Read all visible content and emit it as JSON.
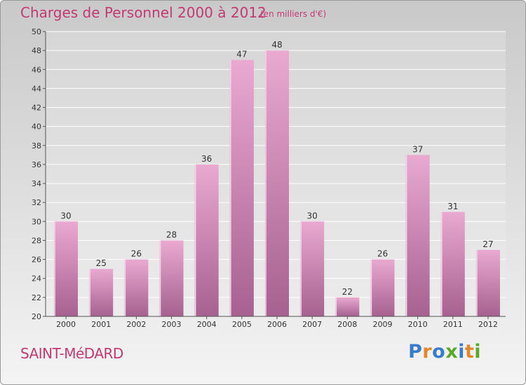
{
  "header": {
    "title": "Charges de Personnel 2000 à 2012",
    "subtitle": "(en milliers d'€)"
  },
  "footer": {
    "commune": "SAINT-MéDARD",
    "logo": "Proxiti"
  },
  "colors": {
    "title": "#c23a73",
    "bar_light": "#e8a8cf",
    "bar_dark": "#a76090",
    "logo_letters": [
      "#3a7ccc",
      "#e2872a",
      "#3a7ccc",
      "#5aaa2a",
      "#3a7ccc",
      "#e2872a",
      "#5aaa2a"
    ]
  },
  "chart_data": {
    "type": "bar",
    "categories": [
      "2000",
      "2001",
      "2002",
      "2003",
      "2004",
      "2005",
      "2006",
      "2007",
      "2008",
      "2009",
      "2010",
      "2011",
      "2012"
    ],
    "values": [
      30,
      25,
      26,
      28,
      36,
      47,
      48,
      30,
      22,
      26,
      37,
      31,
      27
    ],
    "ylim": [
      20,
      50
    ],
    "yticks": [
      20,
      22,
      24,
      26,
      28,
      30,
      32,
      34,
      36,
      38,
      40,
      42,
      44,
      46,
      48,
      50
    ],
    "grid": true,
    "data_labels": true
  }
}
